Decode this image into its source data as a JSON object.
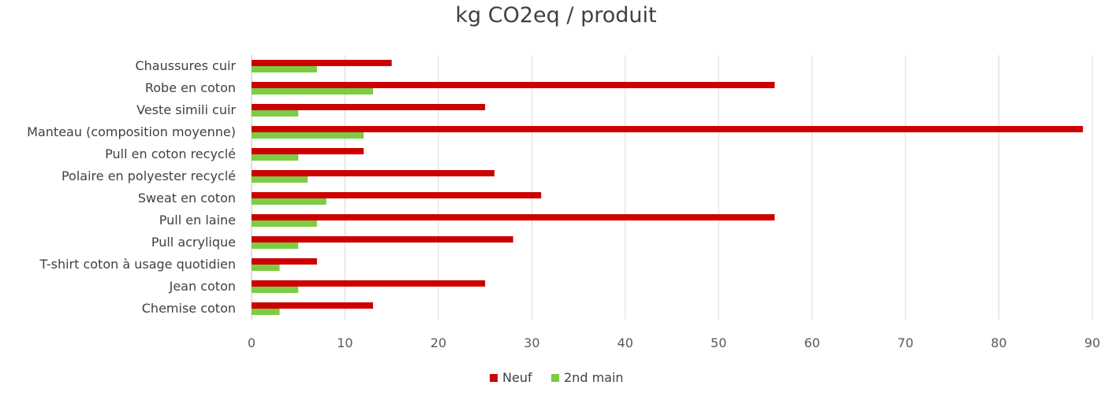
{
  "chart_data": {
    "type": "bar",
    "orientation": "horizontal",
    "title": "kg CO2eq / produit",
    "categories": [
      "Chaussures cuir",
      "Robe en coton",
      "Veste simili cuir",
      "Manteau (composition moyenne)",
      "Pull en coton recyclé",
      "Polaire en polyester recyclé",
      "Sweat en coton",
      "Pull en laine",
      "Pull acrylique",
      "T-shirt coton à usage quotidien",
      "Jean coton",
      "Chemise coton"
    ],
    "series": [
      {
        "name": "Neuf",
        "color": "#cc0000",
        "values": [
          15,
          56,
          25,
          89,
          12,
          26,
          31,
          56,
          28,
          7,
          25,
          13
        ]
      },
      {
        "name": "2nd main",
        "color": "#7ccc44",
        "values": [
          7,
          13,
          5,
          12,
          5,
          6,
          8,
          7,
          5,
          3,
          5,
          3
        ]
      }
    ],
    "xlim": [
      0,
      90
    ],
    "xticks": [
      "0",
      "10",
      "20",
      "30",
      "40",
      "50",
      "60",
      "70",
      "80",
      "90"
    ],
    "grid": true,
    "legend_position": "bottom"
  }
}
